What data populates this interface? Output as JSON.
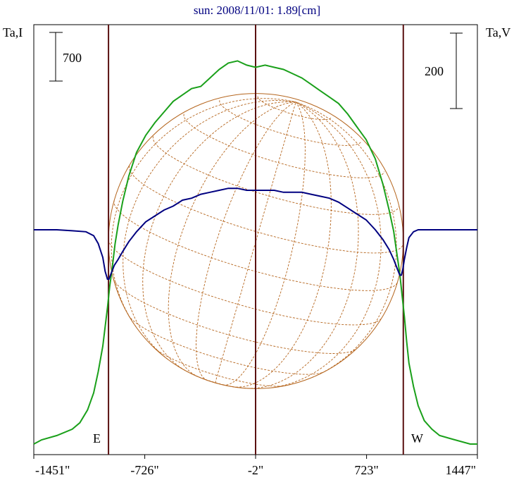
{
  "chart_data": {
    "type": "line",
    "title": "sun: 2008/11/01: 1.89[cm]",
    "ylabel_left": "Ta,I",
    "ylabel_right": "Ta,V",
    "scale_left": "700",
    "scale_right": "200",
    "east_label": "E",
    "west_label": "W",
    "x_ticks": [
      {
        "value": -1451,
        "label": "-1451\""
      },
      {
        "value": -726,
        "label": "-726\""
      },
      {
        "value": -2,
        "label": "-2\""
      },
      {
        "value": 723,
        "label": "723\""
      },
      {
        "value": 1447,
        "label": "1447\""
      }
    ],
    "xlim": [
      -1451,
      1447
    ],
    "vertical_lines": [
      -963,
      -2,
      963
    ],
    "limb_radius_arcsec": 963,
    "series": [
      {
        "color": "#1aa01a",
        "x": [
          -1451,
          -1400,
          -1300,
          -1200,
          -1150,
          -1100,
          -1060,
          -1030,
          -1000,
          -985,
          -970,
          -955,
          -940,
          -920,
          -900,
          -870,
          -830,
          -780,
          -720,
          -660,
          -600,
          -540,
          -480,
          -420,
          -360,
          -300,
          -240,
          -180,
          -120,
          -60,
          -2,
          60,
          120,
          180,
          240,
          300,
          360,
          420,
          480,
          540,
          600,
          660,
          720,
          780,
          830,
          870,
          900,
          920,
          940,
          955,
          970,
          985,
          1000,
          1030,
          1060,
          1100,
          1150,
          1200,
          1300,
          1400,
          1447
        ],
        "y": [
          0.0,
          0.02,
          0.04,
          0.07,
          0.1,
          0.16,
          0.24,
          0.34,
          0.46,
          0.55,
          0.64,
          0.74,
          0.82,
          0.94,
          1.03,
          1.14,
          1.26,
          1.37,
          1.45,
          1.51,
          1.56,
          1.61,
          1.64,
          1.67,
          1.68,
          1.72,
          1.76,
          1.79,
          1.8,
          1.78,
          1.77,
          1.78,
          1.77,
          1.76,
          1.74,
          1.72,
          1.69,
          1.66,
          1.63,
          1.6,
          1.55,
          1.49,
          1.43,
          1.34,
          1.22,
          1.1,
          1.0,
          0.9,
          0.8,
          0.7,
          0.6,
          0.48,
          0.38,
          0.27,
          0.18,
          0.11,
          0.07,
          0.04,
          0.02,
          0.0,
          0.0
        ]
      },
      {
        "color": "#000080",
        "x": [
          -1451,
          -1300,
          -1200,
          -1110,
          -1060,
          -1030,
          -1000,
          -985,
          -970,
          -960,
          -950,
          -940,
          -925,
          -900,
          -870,
          -830,
          -780,
          -720,
          -660,
          -600,
          -540,
          -480,
          -420,
          -360,
          -300,
          -240,
          -180,
          -120,
          -60,
          -2,
          60,
          120,
          180,
          240,
          300,
          360,
          420,
          480,
          540,
          600,
          660,
          720,
          780,
          830,
          870,
          900,
          925,
          940,
          950,
          960,
          970,
          985,
          1000,
          1030,
          1060,
          1110,
          1200,
          1300,
          1447
        ],
        "y": [
          0.0,
          0.0,
          -0.005,
          -0.01,
          -0.03,
          -0.07,
          -0.14,
          -0.21,
          -0.25,
          -0.25,
          -0.23,
          -0.21,
          -0.18,
          -0.15,
          -0.11,
          -0.06,
          -0.01,
          0.04,
          0.07,
          0.1,
          0.12,
          0.15,
          0.16,
          0.18,
          0.19,
          0.2,
          0.21,
          0.21,
          0.2,
          0.2,
          0.2,
          0.2,
          0.19,
          0.19,
          0.19,
          0.18,
          0.17,
          0.16,
          0.14,
          0.11,
          0.08,
          0.05,
          0.0,
          -0.05,
          -0.1,
          -0.15,
          -0.2,
          -0.23,
          -0.23,
          -0.2,
          -0.15,
          -0.09,
          -0.04,
          -0.01,
          0.0,
          0.0,
          0.0,
          0.0,
          0.0
        ]
      }
    ]
  }
}
